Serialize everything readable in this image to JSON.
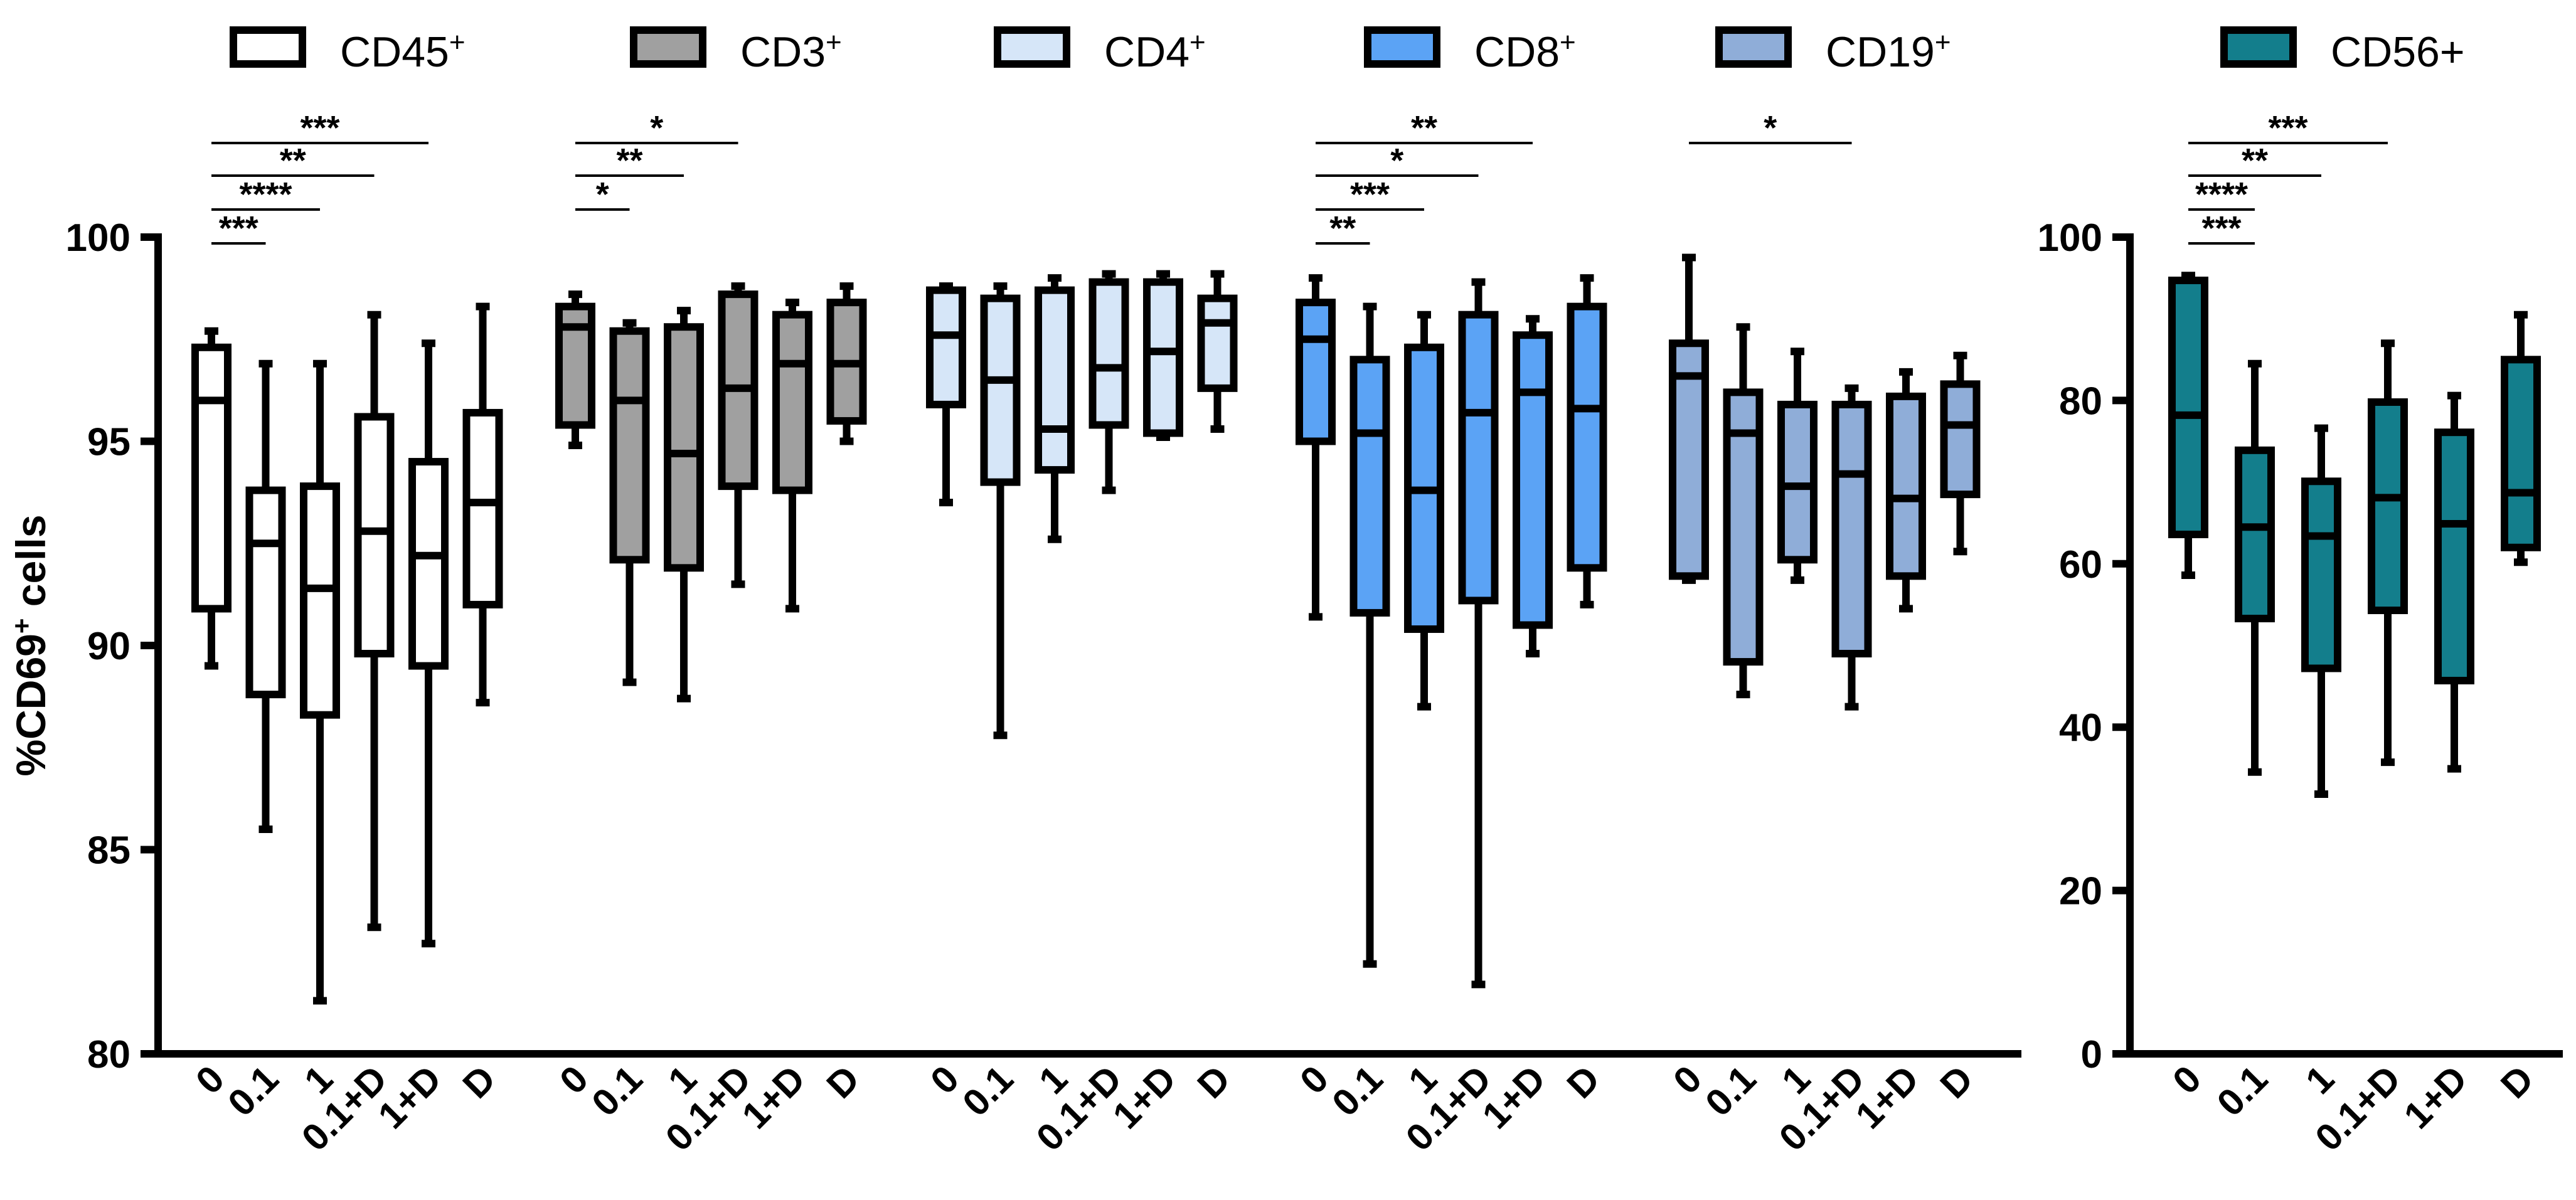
{
  "chart_data": [
    {
      "type": "box",
      "ylabel": "%CD69",
      "ylabel_sup": "+",
      "ylabel_suffix": " cells",
      "ylim": [
        80,
        100
      ],
      "yticks": [
        "80",
        "85",
        "90",
        "95",
        "100"
      ],
      "categories": [
        "0",
        "0.1",
        "1",
        "0.1+D",
        "1+D",
        "D"
      ],
      "series": [
        {
          "name": "CD45",
          "sup": "+",
          "color": "#ffffff",
          "boxes": [
            {
              "min": 89.5,
              "q1": 90.9,
              "median": 96.0,
              "q3": 97.3,
              "max": 97.7
            },
            {
              "min": 85.5,
              "q1": 88.8,
              "median": 92.5,
              "q3": 93.8,
              "max": 96.9
            },
            {
              "min": 81.3,
              "q1": 88.3,
              "median": 91.4,
              "q3": 93.9,
              "max": 96.9
            },
            {
              "min": 83.1,
              "q1": 89.8,
              "median": 92.8,
              "q3": 95.6,
              "max": 98.1
            },
            {
              "min": 82.7,
              "q1": 89.5,
              "median": 92.2,
              "q3": 94.5,
              "max": 97.4
            },
            {
              "min": 88.6,
              "q1": 91.0,
              "median": 93.5,
              "q3": 95.7,
              "max": 98.3
            }
          ],
          "significance": [
            {
              "from": 0,
              "to": 4,
              "label": "***"
            },
            {
              "from": 0,
              "to": 3,
              "label": "**"
            },
            {
              "from": 0,
              "to": 2,
              "label": "****"
            },
            {
              "from": 0,
              "to": 1,
              "label": "***"
            }
          ]
        },
        {
          "name": "CD3",
          "sup": "+",
          "color": "#a0a0a0",
          "boxes": [
            {
              "min": 94.9,
              "q1": 95.4,
              "median": 97.8,
              "q3": 98.3,
              "max": 98.6
            },
            {
              "min": 89.1,
              "q1": 92.1,
              "median": 96.0,
              "q3": 97.7,
              "max": 97.9
            },
            {
              "min": 88.7,
              "q1": 91.9,
              "median": 94.7,
              "q3": 97.8,
              "max": 98.2
            },
            {
              "min": 91.5,
              "q1": 93.9,
              "median": 96.3,
              "q3": 98.6,
              "max": 98.8
            },
            {
              "min": 90.9,
              "q1": 93.8,
              "median": 96.9,
              "q3": 98.1,
              "max": 98.4
            },
            {
              "min": 95.0,
              "q1": 95.5,
              "median": 96.9,
              "q3": 98.4,
              "max": 98.8
            }
          ],
          "significance": [
            {
              "from": 0,
              "to": 3,
              "label": "*"
            },
            {
              "from": 0,
              "to": 2,
              "label": "**"
            },
            {
              "from": 0,
              "to": 1,
              "label": "*"
            }
          ]
        },
        {
          "name": "CD4",
          "sup": "+",
          "color": "#d6e6f8",
          "boxes": [
            {
              "min": 93.5,
              "q1": 95.9,
              "median": 97.6,
              "q3": 98.7,
              "max": 98.8
            },
            {
              "min": 87.8,
              "q1": 94.0,
              "median": 96.5,
              "q3": 98.5,
              "max": 98.8
            },
            {
              "min": 92.6,
              "q1": 94.3,
              "median": 95.3,
              "q3": 98.7,
              "max": 99.0
            },
            {
              "min": 93.8,
              "q1": 95.4,
              "median": 96.8,
              "q3": 98.9,
              "max": 99.1
            },
            {
              "min": 95.1,
              "q1": 95.2,
              "median": 97.2,
              "q3": 98.9,
              "max": 99.1
            },
            {
              "min": 95.3,
              "q1": 96.3,
              "median": 97.9,
              "q3": 98.5,
              "max": 99.1
            }
          ],
          "significance": []
        },
        {
          "name": "CD8",
          "sup": "+",
          "color": "#5ba3f5",
          "boxes": [
            {
              "min": 90.7,
              "q1": 95.0,
              "median": 97.5,
              "q3": 98.4,
              "max": 99.0
            },
            {
              "min": 82.2,
              "q1": 90.8,
              "median": 95.2,
              "q3": 97.0,
              "max": 98.3
            },
            {
              "min": 88.5,
              "q1": 90.4,
              "median": 93.8,
              "q3": 97.3,
              "max": 98.1
            },
            {
              "min": 81.7,
              "q1": 91.1,
              "median": 95.7,
              "q3": 98.1,
              "max": 98.9
            },
            {
              "min": 89.8,
              "q1": 90.5,
              "median": 96.2,
              "q3": 97.6,
              "max": 98.0
            },
            {
              "min": 91.0,
              "q1": 91.9,
              "median": 95.8,
              "q3": 98.3,
              "max": 99.0
            }
          ],
          "significance": [
            {
              "from": 0,
              "to": 4,
              "label": "**"
            },
            {
              "from": 0,
              "to": 3,
              "label": "*"
            },
            {
              "from": 0,
              "to": 2,
              "label": "***"
            },
            {
              "from": 0,
              "to": 1,
              "label": "**"
            }
          ]
        },
        {
          "name": "CD19",
          "sup": "+",
          "color": "#8fadd8",
          "boxes": [
            {
              "min": 91.6,
              "q1": 91.7,
              "median": 96.6,
              "q3": 97.4,
              "max": 99.5
            },
            {
              "min": 88.8,
              "q1": 89.6,
              "median": 95.2,
              "q3": 96.2,
              "max": 97.8
            },
            {
              "min": 91.6,
              "q1": 92.1,
              "median": 93.9,
              "q3": 95.9,
              "max": 97.2
            },
            {
              "min": 88.5,
              "q1": 89.8,
              "median": 94.2,
              "q3": 95.9,
              "max": 96.3
            },
            {
              "min": 90.9,
              "q1": 91.7,
              "median": 93.6,
              "q3": 96.1,
              "max": 96.7
            },
            {
              "min": 92.3,
              "q1": 93.7,
              "median": 95.4,
              "q3": 96.4,
              "max": 97.1
            }
          ],
          "significance": [
            {
              "from": 0,
              "to": 3,
              "label": "*"
            }
          ]
        }
      ]
    },
    {
      "type": "box",
      "ylim": [
        0,
        100
      ],
      "yticks": [
        "0",
        "20",
        "40",
        "60",
        "80",
        "100"
      ],
      "categories": [
        "0",
        "0.1",
        "1",
        "0.1+D",
        "1+D",
        "D"
      ],
      "series": [
        {
          "name": "CD56+",
          "sup": "",
          "color": "#137e8c",
          "boxes": [
            {
              "min": 58.6,
              "q1": 63.6,
              "median": 78.2,
              "q3": 94.7,
              "max": 95.3
            },
            {
              "min": 34.5,
              "q1": 53.3,
              "median": 64.5,
              "q3": 73.9,
              "max": 84.5
            },
            {
              "min": 31.8,
              "q1": 47.2,
              "median": 63.4,
              "q3": 70.1,
              "max": 76.6
            },
            {
              "min": 35.7,
              "q1": 54.3,
              "median": 68.1,
              "q3": 79.8,
              "max": 87.0
            },
            {
              "min": 34.9,
              "q1": 45.7,
              "median": 64.9,
              "q3": 76.1,
              "max": 80.6
            },
            {
              "min": 60.2,
              "q1": 62.0,
              "median": 68.7,
              "q3": 85.0,
              "max": 90.5
            }
          ],
          "significance": [
            {
              "from": 0,
              "to": 3,
              "label": "***"
            },
            {
              "from": 0,
              "to": 2,
              "label": "**"
            },
            {
              "from": 0,
              "to": 1,
              "label": "****"
            },
            {
              "from": 0,
              "to": 1,
              "label": "***"
            }
          ]
        }
      ]
    }
  ]
}
